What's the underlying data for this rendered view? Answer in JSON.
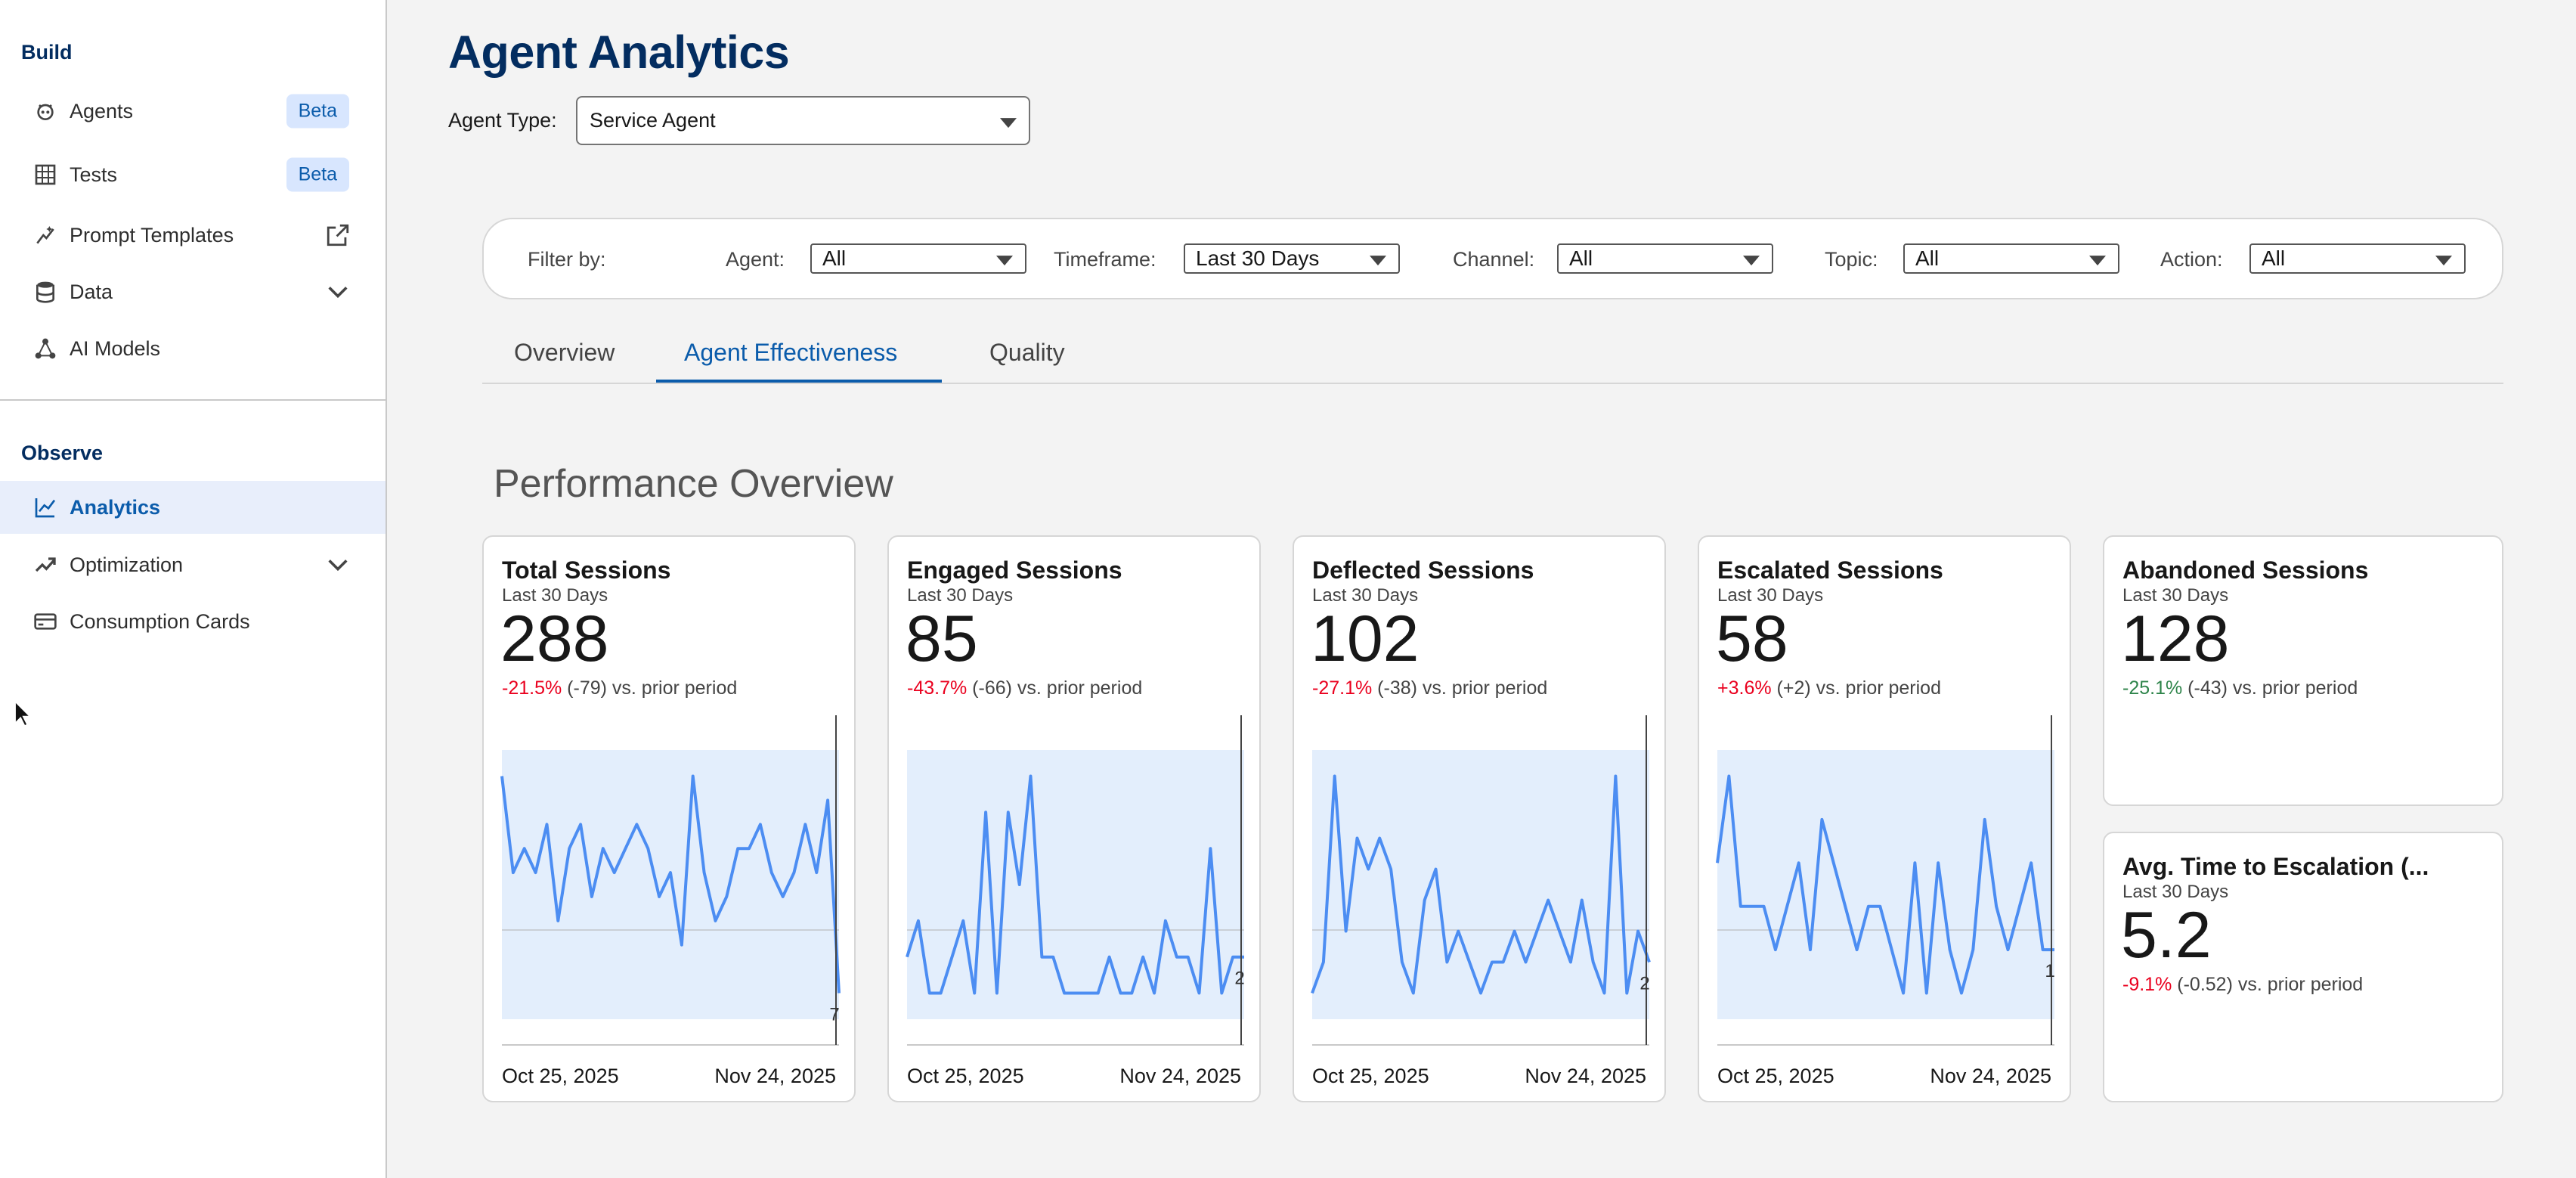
{
  "sidebar": {
    "build_title": "Build",
    "observe_title": "Observe",
    "build_items": [
      {
        "label": "Agents",
        "icon": "robot-icon",
        "badge": "Beta"
      },
      {
        "label": "Tests",
        "icon": "table-icon",
        "badge": "Beta"
      },
      {
        "label": "Prompt Templates",
        "icon": "sparkle-icon",
        "right_icon": "external-link-icon"
      },
      {
        "label": "Data",
        "icon": "database-icon",
        "right_icon": "chevron-down-icon"
      },
      {
        "label": "AI Models",
        "icon": "nodes-icon"
      }
    ],
    "observe_items": [
      {
        "label": "Analytics",
        "icon": "line-chart-icon",
        "active": true
      },
      {
        "label": "Optimization",
        "icon": "trend-up-icon",
        "right_icon": "chevron-down-icon"
      },
      {
        "label": "Consumption Cards",
        "icon": "card-icon"
      }
    ]
  },
  "header": {
    "title": "Agent Analytics",
    "agent_type_label": "Agent Type:",
    "agent_type_value": "Service Agent"
  },
  "filters": {
    "label": "Filter by:",
    "agent_label": "Agent:",
    "agent_value": "All",
    "timeframe_label": "Timeframe:",
    "timeframe_value": "Last 30 Days",
    "channel_label": "Channel:",
    "channel_value": "All",
    "topic_label": "Topic:",
    "topic_value": "All",
    "action_label": "Action:",
    "action_value": "All"
  },
  "tabs": [
    {
      "label": "Overview",
      "active": false
    },
    {
      "label": "Agent Effectiveness",
      "active": true
    },
    {
      "label": "Quality",
      "active": false
    }
  ],
  "section_title": "Performance Overview",
  "cards": [
    {
      "title": "Total Sessions",
      "period": "Last 30 Days",
      "value": "288",
      "delta_pct": "-21.5%",
      "delta_abs": "(-79) vs. prior period",
      "delta_color": "neg",
      "x_start": "Oct 25, 2025",
      "x_end": "Nov 24, 2025",
      "last_label": "7"
    },
    {
      "title": "Engaged Sessions",
      "period": "Last 30 Days",
      "value": "85",
      "delta_pct": "-43.7%",
      "delta_abs": "(-66) vs. prior period",
      "delta_color": "neg",
      "x_start": "Oct 25, 2025",
      "x_end": "Nov 24, 2025",
      "last_label": "2"
    },
    {
      "title": "Deflected Sessions",
      "period": "Last 30 Days",
      "value": "102",
      "delta_pct": "-27.1%",
      "delta_abs": "(-38) vs. prior period",
      "delta_color": "neg",
      "x_start": "Oct 25, 2025",
      "x_end": "Nov 24, 2025",
      "last_label": "2"
    },
    {
      "title": "Escalated Sessions",
      "period": "Last 30 Days",
      "value": "58",
      "delta_pct": "+3.6%",
      "delta_abs": "(+2) vs. prior period",
      "delta_color": "neg",
      "x_start": "Oct 25, 2025",
      "x_end": "Nov 24, 2025",
      "last_label": "1"
    },
    {
      "title": "Abandoned Sessions",
      "period": "Last 30 Days",
      "value": "128",
      "delta_pct": "-25.1%",
      "delta_abs": "(-43) vs. prior period",
      "delta_color": "pos"
    },
    {
      "title": "Avg. Time to Escalation (...",
      "period": "Last 30 Days",
      "value": "5.2",
      "delta_pct": "-9.1%",
      "delta_abs": "(-0.52) vs. prior period",
      "delta_color": "neg"
    }
  ],
  "chart_data": [
    {
      "type": "line",
      "title": "Total Sessions",
      "x_range": [
        "Oct 25, 2025",
        "Nov 24, 2025"
      ],
      "series": [
        {
          "values": [
            16,
            12,
            13,
            12,
            14,
            10,
            13,
            14,
            11,
            13,
            12,
            13,
            14,
            13,
            11,
            12,
            9,
            16,
            12,
            10,
            11,
            13,
            13,
            14,
            12,
            11,
            12,
            14,
            12,
            15,
            7
          ]
        }
      ],
      "band": [
        7,
        16
      ]
    },
    {
      "type": "line",
      "title": "Engaged Sessions",
      "x_range": [
        "Oct 25, 2025",
        "Nov 24, 2025"
      ],
      "series": [
        {
          "values": [
            2,
            3,
            1,
            1,
            2,
            3,
            1,
            6,
            1,
            6,
            4,
            7,
            2,
            2,
            1,
            1,
            1,
            1,
            2,
            1,
            1,
            2,
            1,
            3,
            2,
            2,
            1,
            5,
            1,
            2,
            2
          ]
        }
      ],
      "band": [
        0,
        7
      ]
    },
    {
      "type": "line",
      "title": "Deflected Sessions",
      "x_range": [
        "Oct 25, 2025",
        "Nov 24, 2025"
      ],
      "series": [
        {
          "values": [
            1,
            2,
            8,
            3,
            6,
            5,
            6,
            5,
            2,
            1,
            4,
            5,
            2,
            3,
            2,
            1,
            2,
            2,
            3,
            2,
            3,
            4,
            3,
            2,
            4,
            2,
            1,
            8,
            1,
            3,
            2
          ]
        }
      ],
      "band": [
        0,
        8
      ]
    },
    {
      "type": "line",
      "title": "Escalated Sessions",
      "x_range": [
        "Oct 25, 2025",
        "Nov 24, 2025"
      ],
      "series": [
        {
          "values": [
            3,
            5,
            2,
            2,
            2,
            1,
            2,
            3,
            1,
            4,
            3,
            2,
            1,
            2,
            2,
            1,
            0,
            3,
            0,
            3,
            1,
            0,
            1,
            4,
            2,
            1,
            2,
            3,
            1,
            1
          ]
        }
      ],
      "band": [
        0,
        5
      ]
    }
  ]
}
